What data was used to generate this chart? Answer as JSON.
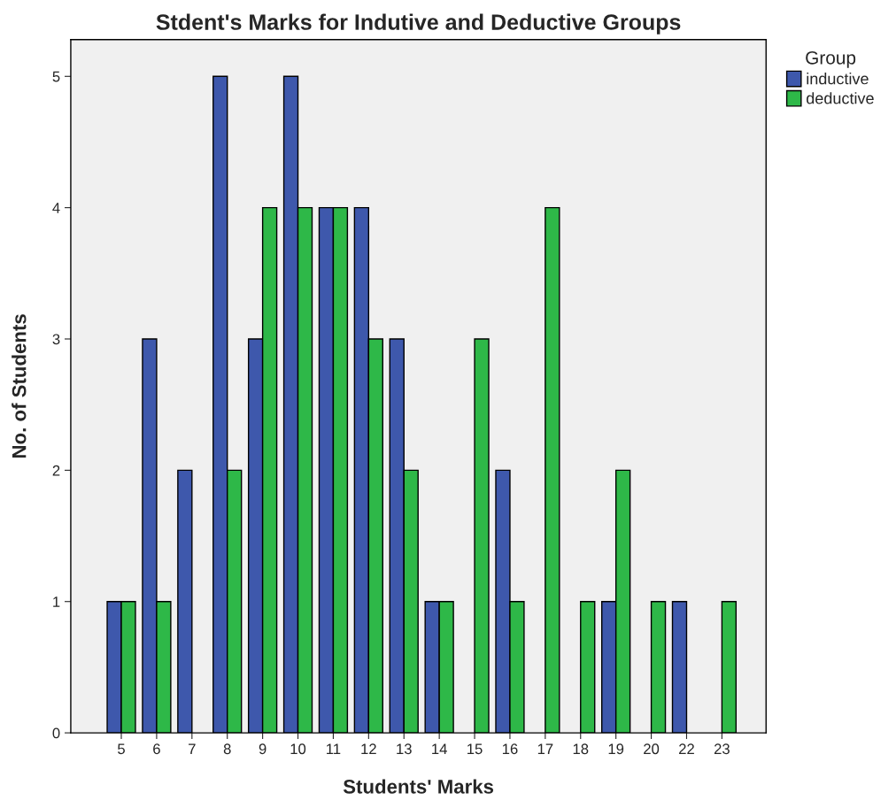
{
  "chart_data": {
    "type": "bar",
    "title": "Stdent's Marks for Indutive and Deductive Groups",
    "xlabel": "Students' Marks",
    "ylabel": "No. of Students",
    "legend_title": "Group",
    "categories": [
      "5",
      "6",
      "7",
      "8",
      "9",
      "10",
      "11",
      "12",
      "13",
      "14",
      "15",
      "16",
      "17",
      "18",
      "19",
      "20",
      "22",
      "23"
    ],
    "series": [
      {
        "name": "inductive",
        "color": "#3e58ac",
        "values": [
          1,
          3,
          2,
          5,
          3,
          5,
          4,
          4,
          3,
          1,
          null,
          2,
          null,
          null,
          1,
          null,
          1,
          null
        ]
      },
      {
        "name": "deductive",
        "color": "#2eb848",
        "values": [
          1,
          1,
          null,
          2,
          4,
          4,
          4,
          3,
          2,
          1,
          3,
          1,
          4,
          1,
          2,
          1,
          null,
          1
        ]
      }
    ],
    "ylim": [
      0,
      5.28
    ],
    "yticks": [
      0,
      1,
      2,
      3,
      4,
      5
    ],
    "grid": false,
    "legend": "top right"
  }
}
